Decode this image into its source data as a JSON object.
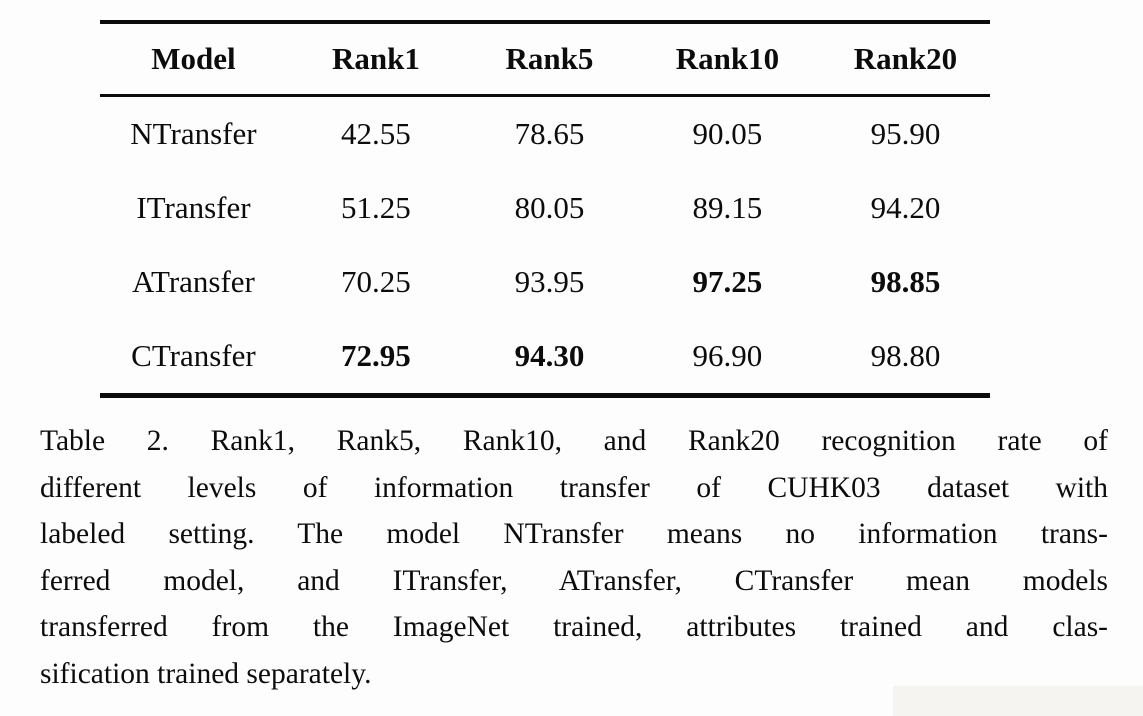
{
  "table": {
    "columns": [
      "Model",
      "Rank1",
      "Rank5",
      "Rank10",
      "Rank20"
    ],
    "rows": [
      {
        "model": "NTransfer",
        "model_bold": false,
        "values": [
          "42.55",
          "78.65",
          "90.05",
          "95.90"
        ],
        "bold": [
          false,
          false,
          false,
          false
        ]
      },
      {
        "model": "ITransfer",
        "model_bold": false,
        "values": [
          "51.25",
          "80.05",
          "89.15",
          "94.20"
        ],
        "bold": [
          false,
          false,
          false,
          false
        ]
      },
      {
        "model": "ATransfer",
        "model_bold": false,
        "values": [
          "70.25",
          "93.95",
          "97.25",
          "98.85"
        ],
        "bold": [
          false,
          false,
          true,
          true
        ]
      },
      {
        "model": "CTransfer",
        "model_bold": false,
        "values": [
          "72.95",
          "94.30",
          "96.90",
          "98.80"
        ],
        "bold": [
          true,
          true,
          false,
          false
        ]
      }
    ]
  },
  "caption": {
    "lines": [
      "Table 2. Rank1, Rank5, Rank10, and Rank20 recognition rate of",
      "different levels of information transfer of CUHK03 dataset with",
      "labeled setting. The model NTransfer means no information trans-",
      "ferred model, and ITransfer, ATransfer, CTransfer mean models",
      "transferred from the ImageNet trained, attributes trained and clas-",
      "sification trained separately."
    ],
    "full_text": "Table 2. Rank1, Rank5, Rank10, and Rank20 recognition rate of different levels of information transfer of CUHK03 dataset with labeled setting. The model NTransfer means no information transferred model, and ITransfer, ATransfer, CTransfer mean models transferred from the ImageNet trained, attributes trained and classification trained separately."
  },
  "colors": {
    "text": "#0c0c0c",
    "background": "#fdfdfd",
    "rule": "#0c0c0c",
    "corner_artifact": "#f5f4f1"
  }
}
